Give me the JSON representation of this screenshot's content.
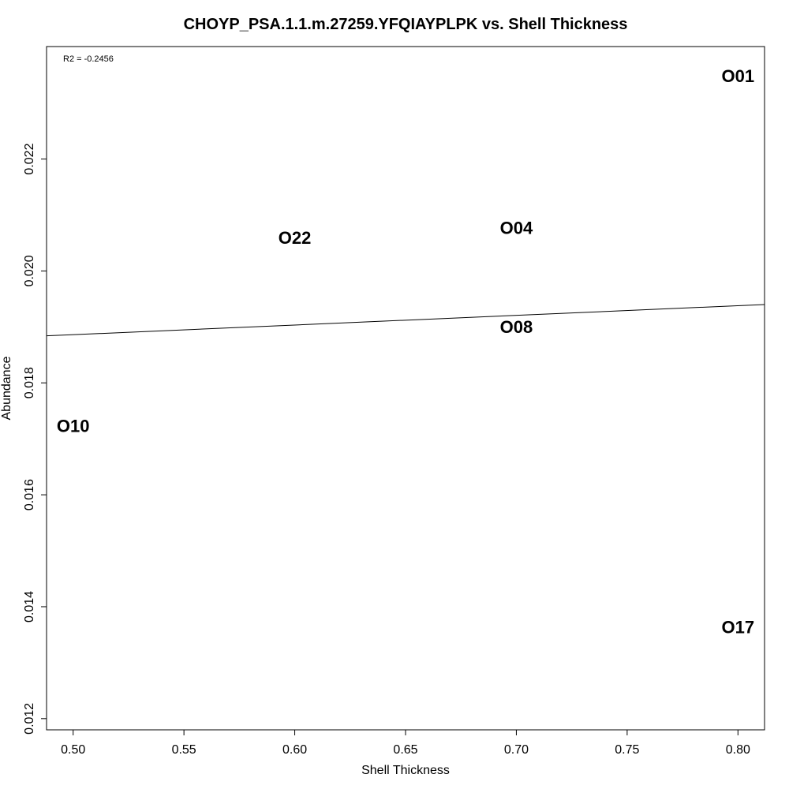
{
  "chart_data": {
    "type": "scatter",
    "title": "CHOYP_PSA.1.1.m.27259.YFQIAYPLPK vs. Shell Thickness",
    "xlabel": "Shell Thickness",
    "ylabel": "Abundance",
    "annotation": "R2 = -0.2456",
    "xlim": [
      0.488,
      0.812
    ],
    "ylim": [
      0.0118,
      0.02401
    ],
    "xticks": [
      0.5,
      0.55,
      0.6,
      0.65,
      0.7,
      0.75,
      0.8
    ],
    "xtick_labels": [
      "0.50",
      "0.55",
      "0.60",
      "0.65",
      "0.70",
      "0.75",
      "0.80"
    ],
    "yticks": [
      0.012,
      0.014,
      0.016,
      0.018,
      0.02,
      0.022
    ],
    "ytick_labels": [
      "0.012",
      "0.014",
      "0.016",
      "0.018",
      "0.020",
      "0.022"
    ],
    "points": [
      {
        "label": "O01",
        "x": 0.8,
        "y": 0.02348
      },
      {
        "label": "O22",
        "x": 0.6,
        "y": 0.02059
      },
      {
        "label": "O04",
        "x": 0.7,
        "y": 0.02077
      },
      {
        "label": "O08",
        "x": 0.7,
        "y": 0.019
      },
      {
        "label": "O10",
        "x": 0.5,
        "y": 0.01723
      },
      {
        "label": "O17",
        "x": 0.8,
        "y": 0.01363
      }
    ],
    "regression_line": {
      "x": [
        0.488,
        0.812
      ],
      "y": [
        0.01884,
        0.0194
      ]
    },
    "grid": false,
    "legend": "none"
  }
}
